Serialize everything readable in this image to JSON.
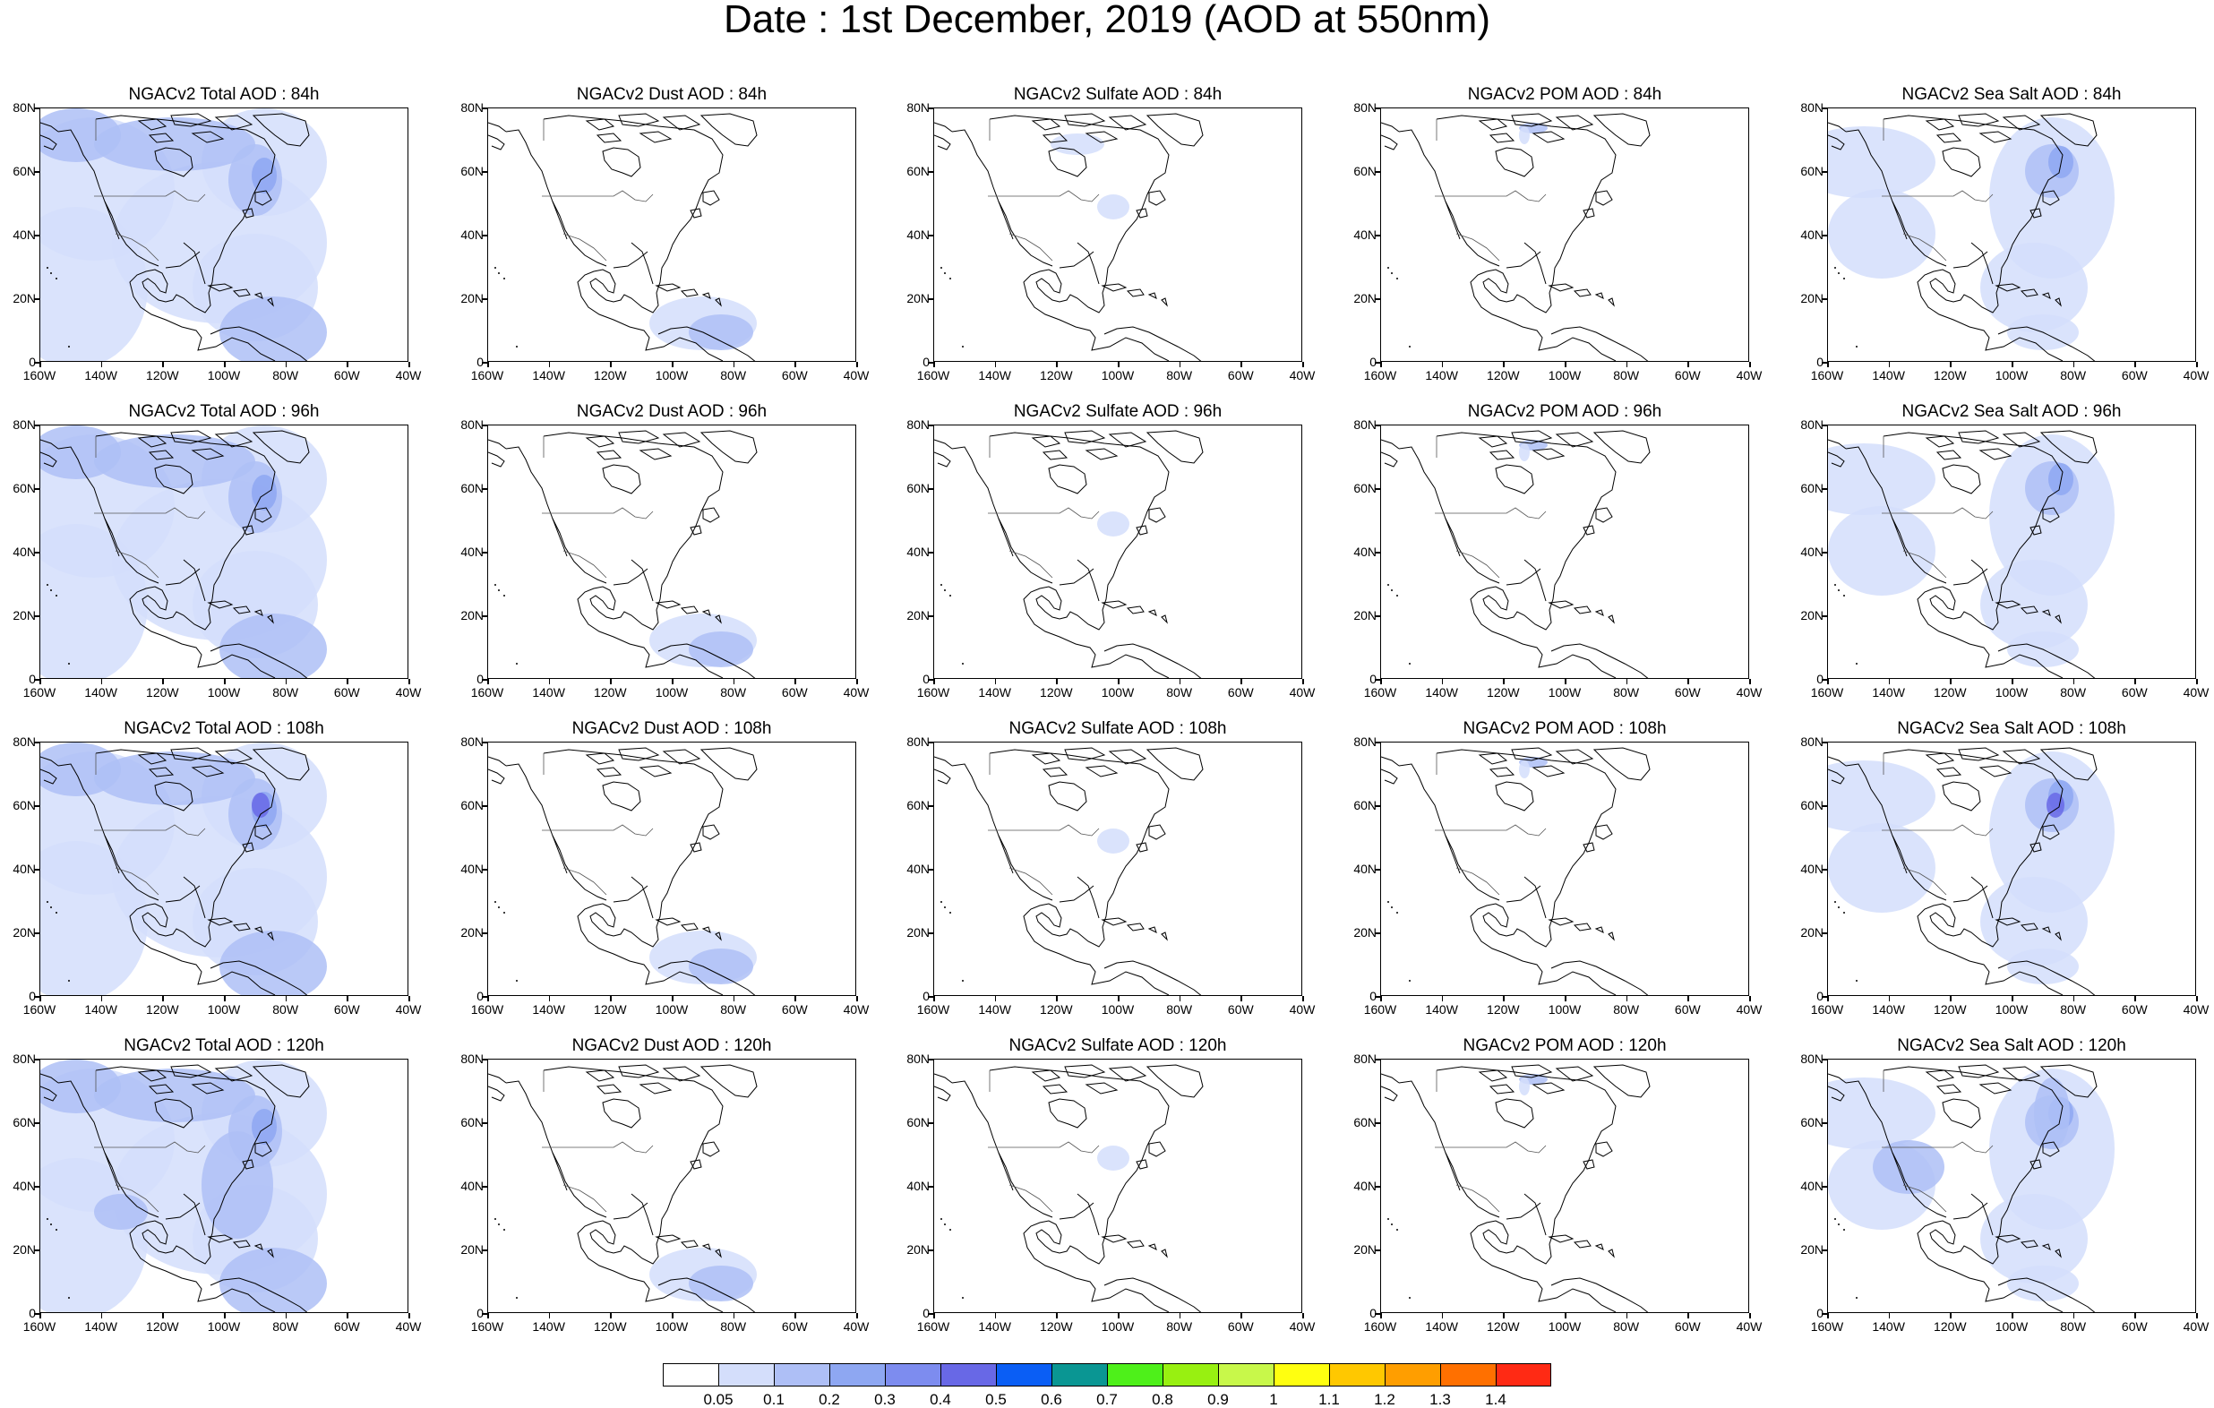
{
  "title": "Date : 1st December, 2019 (AOD at 550nm)",
  "lat_labels": [
    "80N",
    "60N",
    "40N",
    "20N",
    "0"
  ],
  "lon_labels": [
    "160W",
    "140W",
    "120W",
    "100W",
    "80W",
    "60W",
    "40W"
  ],
  "rows": [
    {
      "hour": "84h",
      "panels": [
        {
          "title": "NGACv2 Total AOD : 84h",
          "variable": "total"
        },
        {
          "title": "NGACv2 Dust AOD : 84h",
          "variable": "dust"
        },
        {
          "title": "NGACv2 Sulfate AOD : 84h",
          "variable": "sulfate"
        },
        {
          "title": "NGACv2 POM AOD : 84h",
          "variable": "pom"
        },
        {
          "title": "NGACv2 Sea Salt AOD : 84h",
          "variable": "seasalt"
        }
      ]
    },
    {
      "hour": "96h",
      "panels": [
        {
          "title": "NGACv2 Total AOD : 96h",
          "variable": "total"
        },
        {
          "title": "NGACv2 Dust AOD : 96h",
          "variable": "dust"
        },
        {
          "title": "NGACv2 Sulfate AOD : 96h",
          "variable": "sulfate"
        },
        {
          "title": "NGACv2 POM AOD : 96h",
          "variable": "pom"
        },
        {
          "title": "NGACv2 Sea Salt AOD : 96h",
          "variable": "seasalt"
        }
      ]
    },
    {
      "hour": "108h",
      "panels": [
        {
          "title": "NGACv2 Total AOD : 108h",
          "variable": "total"
        },
        {
          "title": "NGACv2 Dust AOD : 108h",
          "variable": "dust"
        },
        {
          "title": "NGACv2 Sulfate AOD : 108h",
          "variable": "sulfate"
        },
        {
          "title": "NGACv2 POM AOD : 108h",
          "variable": "pom"
        },
        {
          "title": "NGACv2 Sea Salt AOD : 108h",
          "variable": "seasalt"
        }
      ]
    },
    {
      "hour": "120h",
      "panels": [
        {
          "title": "NGACv2 Total AOD : 120h",
          "variable": "total"
        },
        {
          "title": "NGACv2 Dust AOD : 120h",
          "variable": "dust"
        },
        {
          "title": "NGACv2 Sulfate AOD : 120h",
          "variable": "sulfate"
        },
        {
          "title": "NGACv2 POM AOD : 120h",
          "variable": "pom"
        },
        {
          "title": "NGACv2 Sea Salt  AOD : 120h",
          "variable": "seasalt"
        }
      ]
    }
  ],
  "colorbar": {
    "labels": [
      "0.05",
      "0.1",
      "0.2",
      "0.3",
      "0.4",
      "0.5",
      "0.6",
      "0.7",
      "0.8",
      "0.9",
      "1",
      "1.1",
      "1.2",
      "1.3",
      "1.4"
    ],
    "colors": [
      "#ffffff",
      "#d4defb",
      "#aebff6",
      "#8ea7f2",
      "#7d8cef",
      "#6868e6",
      "#0a5ef5",
      "#0a9693",
      "#4ef01a",
      "#98f011",
      "#c8f84a",
      "#ffff10",
      "#ffc800",
      "#ff9e00",
      "#ff7000",
      "#ff2a14"
    ]
  },
  "colors": {
    "land_border": "#000000",
    "aod_light": "#d4defb",
    "aod_mid": "#aebff6",
    "aod_high": "#8ea7f2",
    "aod_peak": "#6868e6"
  }
}
